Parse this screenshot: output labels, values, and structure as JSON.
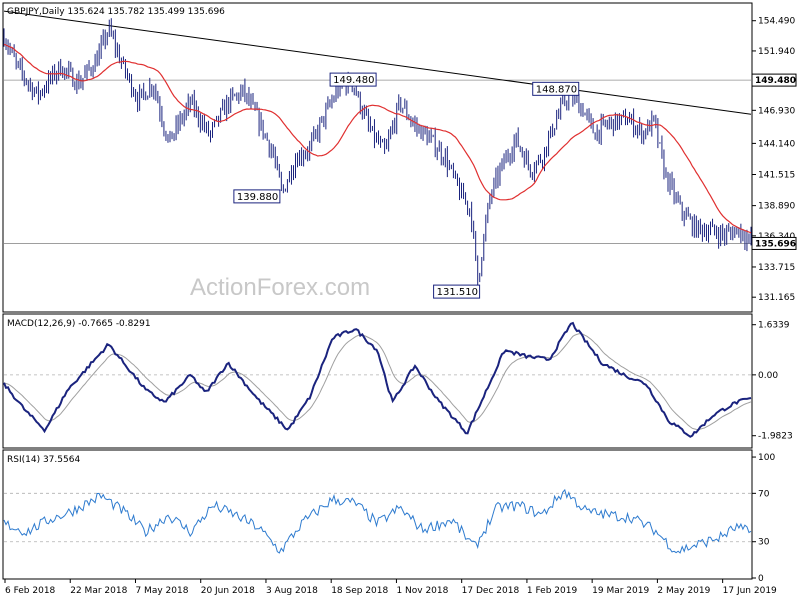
{
  "chart_data": [
    {
      "type": "ohlc",
      "title": "GBPJPY,Daily  135.624 135.782 135.499 135.696",
      "ylim": [
        130.0,
        155.9
      ],
      "y_ticks": [
        "154.490",
        "151.940",
        "149.480",
        "146.930",
        "144.140",
        "141.515",
        "138.890",
        "136.340",
        "133.715",
        "131.165"
      ],
      "y_tick_values": [
        154.49,
        151.94,
        149.48,
        146.93,
        144.14,
        141.515,
        138.89,
        136.34,
        133.715,
        131.165
      ],
      "x_ticks": [
        "6 Feb 2018",
        "22 Mar 2018",
        "7 May 2018",
        "20 Jun 2018",
        "3 Aug 2018",
        "18 Sep 2018",
        "1 Nov 2018",
        "17 Dec 2018",
        "1 Feb 2019",
        "19 Mar 2019",
        "2 May 2019",
        "17 Jun 2019"
      ],
      "last_price": "135.696",
      "level_line": {
        "value": 149.48,
        "label": "149.480"
      },
      "annotations": [
        {
          "label": "139.880",
          "value": 139.88,
          "pos": 0.372
        },
        {
          "label": "149.480",
          "value": 149.48,
          "pos": 0.466
        },
        {
          "label": "131.510",
          "value": 131.51,
          "pos": 0.634
        },
        {
          "label": "148.870",
          "value": 148.87,
          "pos": 0.756
        }
      ],
      "trendline": {
        "from": [
          0.0,
          155.3
        ],
        "to": [
          1.0,
          146.6
        ]
      },
      "ma_color": "#e03030",
      "price_color": "#1a237e",
      "watermark": "ActionForex.com",
      "anchors": [
        [
          0.0,
          153.2
        ],
        [
          0.018,
          150.5
        ],
        [
          0.045,
          148.2
        ],
        [
          0.075,
          150.6
        ],
        [
          0.1,
          149.2
        ],
        [
          0.125,
          151.3
        ],
        [
          0.14,
          153.8
        ],
        [
          0.16,
          150.5
        ],
        [
          0.18,
          147.8
        ],
        [
          0.2,
          149.2
        ],
        [
          0.22,
          144.2
        ],
        [
          0.25,
          147.6
        ],
        [
          0.275,
          144.8
        ],
        [
          0.3,
          147.6
        ],
        [
          0.32,
          148.5
        ],
        [
          0.34,
          146.2
        ],
        [
          0.36,
          143.3
        ],
        [
          0.372,
          139.9
        ],
        [
          0.39,
          142.8
        ],
        [
          0.41,
          143.8
        ],
        [
          0.43,
          146.6
        ],
        [
          0.45,
          149.0
        ],
        [
          0.466,
          149.3
        ],
        [
          0.49,
          145.2
        ],
        [
          0.51,
          143.3
        ],
        [
          0.53,
          147.6
        ],
        [
          0.55,
          145.6
        ],
        [
          0.57,
          144.5
        ],
        [
          0.59,
          143.0
        ],
        [
          0.61,
          140.0
        ],
        [
          0.625,
          138.5
        ],
        [
          0.634,
          132.5
        ],
        [
          0.65,
          139.5
        ],
        [
          0.665,
          142.0
        ],
        [
          0.685,
          144.5
        ],
        [
          0.705,
          142.0
        ],
        [
          0.72,
          143.0
        ],
        [
          0.74,
          146.3
        ],
        [
          0.756,
          148.3
        ],
        [
          0.775,
          147.0
        ],
        [
          0.79,
          145.0
        ],
        [
          0.81,
          145.8
        ],
        [
          0.835,
          146.2
        ],
        [
          0.855,
          145.0
        ],
        [
          0.87,
          146.0
        ],
        [
          0.885,
          141.5
        ],
        [
          0.905,
          138.6
        ],
        [
          0.925,
          137.0
        ],
        [
          0.945,
          136.8
        ],
        [
          0.965,
          136.4
        ],
        [
          0.985,
          136.9
        ],
        [
          1.0,
          135.7
        ]
      ]
    },
    {
      "type": "line",
      "title": "MACD(12,26,9) -0.7665 -0.8291",
      "ylim": [
        -2.35,
        1.95
      ],
      "y_ticks": [
        "1.6339",
        "0.00",
        "-1.9823"
      ],
      "y_tick_values": [
        1.6339,
        0.0,
        -1.9823
      ],
      "macd_color": "#1a237e",
      "signal_color": "#a0a0a0",
      "anchors": [
        [
          0.0,
          -0.3
        ],
        [
          0.03,
          -1.2
        ],
        [
          0.055,
          -1.8
        ],
        [
          0.085,
          -0.5
        ],
        [
          0.14,
          1.0
        ],
        [
          0.19,
          -0.5
        ],
        [
          0.215,
          -0.9
        ],
        [
          0.25,
          0.0
        ],
        [
          0.27,
          -0.6
        ],
        [
          0.3,
          0.4
        ],
        [
          0.34,
          -0.8
        ],
        [
          0.38,
          -1.8
        ],
        [
          0.41,
          -0.7
        ],
        [
          0.44,
          1.2
        ],
        [
          0.47,
          1.5
        ],
        [
          0.5,
          0.8
        ],
        [
          0.52,
          -0.9
        ],
        [
          0.55,
          0.3
        ],
        [
          0.58,
          -0.8
        ],
        [
          0.62,
          -1.9
        ],
        [
          0.67,
          0.8
        ],
        [
          0.7,
          0.6
        ],
        [
          0.73,
          0.5
        ],
        [
          0.76,
          1.7
        ],
        [
          0.8,
          0.4
        ],
        [
          0.83,
          0.0
        ],
        [
          0.86,
          -0.3
        ],
        [
          0.89,
          -1.5
        ],
        [
          0.92,
          -2.0
        ],
        [
          0.95,
          -1.3
        ],
        [
          0.98,
          -0.9
        ],
        [
          1.0,
          -0.77
        ]
      ]
    },
    {
      "type": "line",
      "title": "RSI(14) 37.5564",
      "ylim": [
        0,
        105
      ],
      "y_ticks": [
        "100",
        "70",
        "30",
        "0"
      ],
      "y_tick_values": [
        100,
        70,
        30,
        0
      ],
      "rsi_color": "#2e7bcf",
      "anchors": [
        [
          0.0,
          45
        ],
        [
          0.03,
          38
        ],
        [
          0.06,
          48
        ],
        [
          0.09,
          55
        ],
        [
          0.13,
          68
        ],
        [
          0.16,
          55
        ],
        [
          0.19,
          38
        ],
        [
          0.22,
          52
        ],
        [
          0.25,
          38
        ],
        [
          0.28,
          60
        ],
        [
          0.31,
          52
        ],
        [
          0.34,
          42
        ],
        [
          0.37,
          22
        ],
        [
          0.4,
          46
        ],
        [
          0.44,
          65
        ],
        [
          0.47,
          62
        ],
        [
          0.5,
          45
        ],
        [
          0.53,
          58
        ],
        [
          0.56,
          40
        ],
        [
          0.6,
          48
        ],
        [
          0.63,
          25
        ],
        [
          0.66,
          58
        ],
        [
          0.69,
          60
        ],
        [
          0.72,
          52
        ],
        [
          0.75,
          72
        ],
        [
          0.78,
          55
        ],
        [
          0.81,
          52
        ],
        [
          0.84,
          50
        ],
        [
          0.87,
          40
        ],
        [
          0.9,
          22
        ],
        [
          0.93,
          28
        ],
        [
          0.96,
          34
        ],
        [
          0.98,
          42
        ],
        [
          1.0,
          37.6
        ]
      ]
    }
  ]
}
